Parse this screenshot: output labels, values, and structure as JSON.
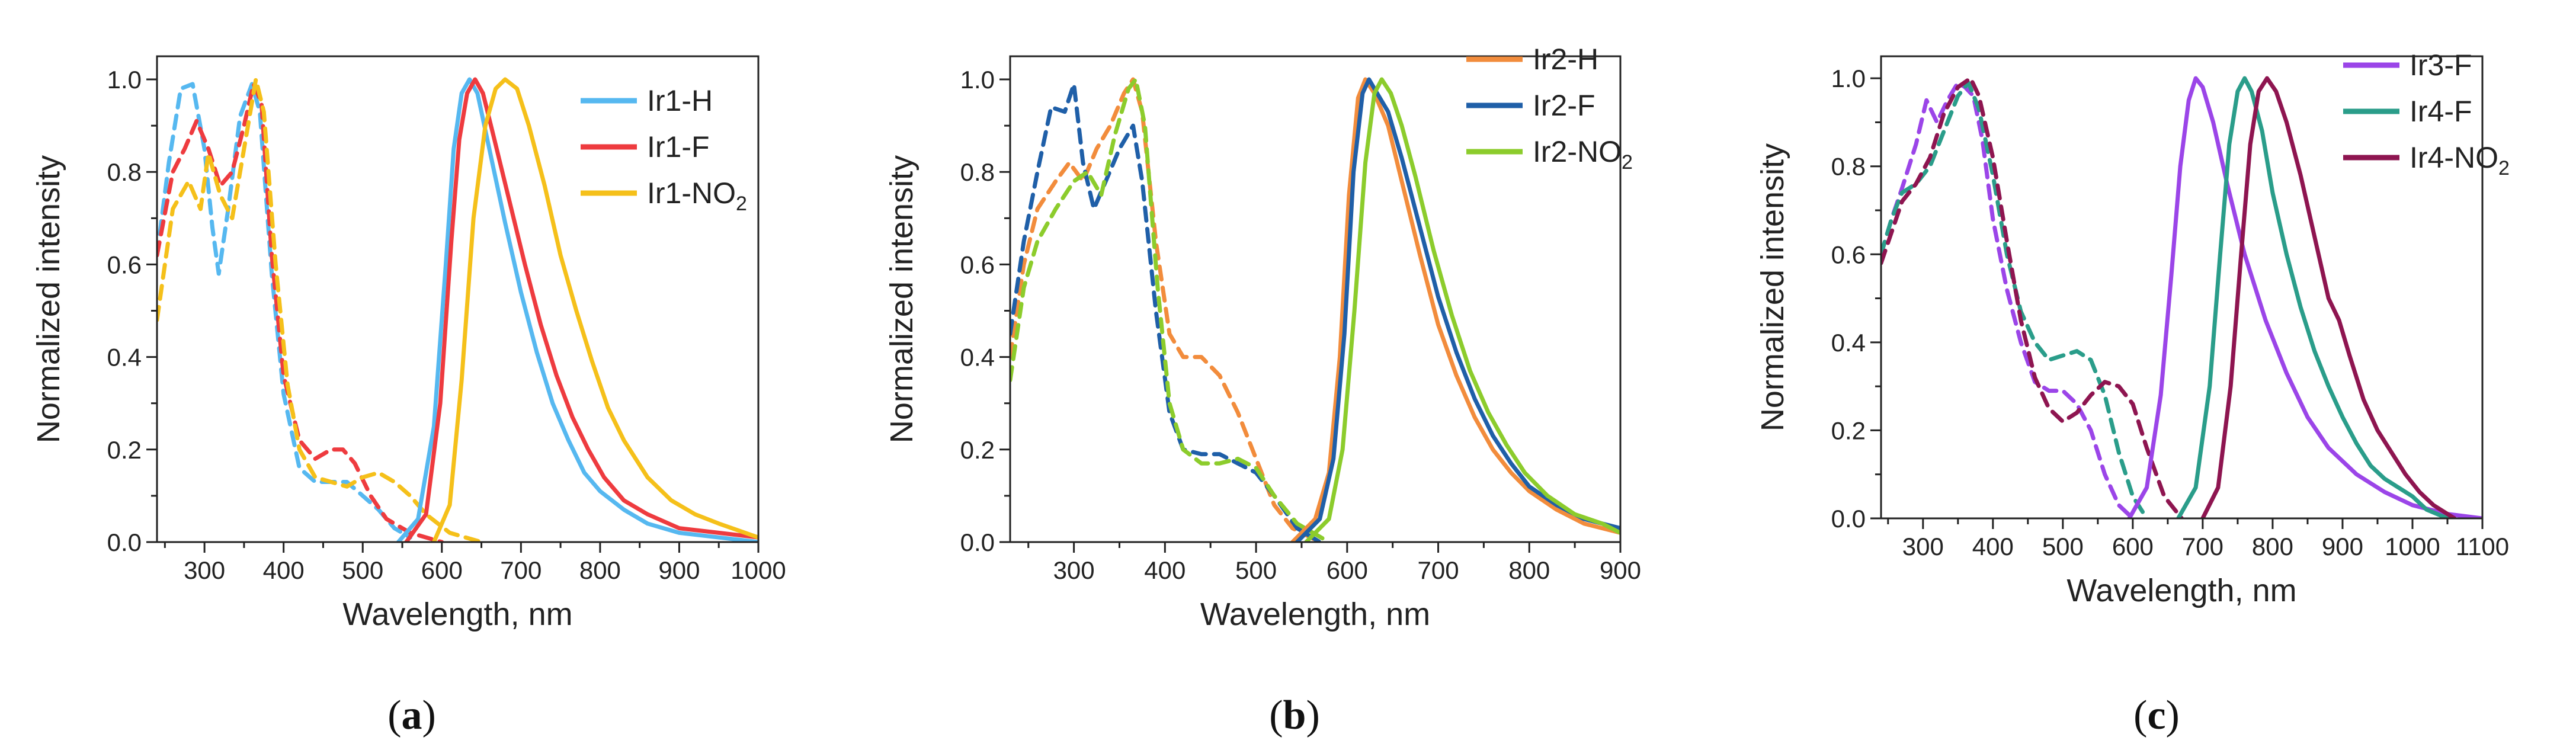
{
  "figure": {
    "description_labels": [
      "(a)",
      "(b)",
      "(c)"
    ]
  },
  "chart_data": [
    {
      "type": "line",
      "panel_label": "a",
      "xlabel": "Wavelength, nm",
      "ylabel": "Normalized intensity",
      "xlim": [
        240,
        1000
      ],
      "ylim": [
        0,
        1.05
      ],
      "xticks": [
        300,
        400,
        500,
        600,
        700,
        800,
        900,
        1000
      ],
      "yticks": [
        0.0,
        0.2,
        0.4,
        0.6,
        0.8,
        1.0
      ],
      "legend": [
        {
          "name": "Ir1-H",
          "sub": "",
          "color": "#56b8f0"
        },
        {
          "name": "Ir1-F",
          "sub": "",
          "color": "#ee3b3f"
        },
        {
          "name": "Ir1-NO",
          "sub": "2",
          "color": "#f5c01a"
        }
      ],
      "series": [
        {
          "name": "Ir1-H absorption",
          "color": "#56b8f0",
          "style": "dashed",
          "x": [
            240,
            255,
            270,
            285,
            300,
            310,
            318,
            330,
            345,
            360,
            370,
            385,
            400,
            420,
            440,
            460,
            480,
            500,
            520,
            540,
            560
          ],
          "y": [
            0.62,
            0.82,
            0.98,
            0.99,
            0.85,
            0.68,
            0.58,
            0.72,
            0.92,
            0.99,
            0.93,
            0.58,
            0.32,
            0.16,
            0.13,
            0.13,
            0.13,
            0.1,
            0.07,
            0.03,
            0.01
          ]
        },
        {
          "name": "Ir1-F absorption",
          "color": "#ee3b3f",
          "style": "dashed",
          "x": [
            240,
            260,
            275,
            290,
            305,
            320,
            335,
            350,
            362,
            372,
            385,
            400,
            420,
            440,
            460,
            475,
            490,
            510,
            530,
            560,
            600
          ],
          "y": [
            0.62,
            0.8,
            0.85,
            0.91,
            0.85,
            0.77,
            0.8,
            0.9,
            0.99,
            0.95,
            0.62,
            0.36,
            0.22,
            0.18,
            0.2,
            0.2,
            0.17,
            0.1,
            0.05,
            0.02,
            0.0
          ]
        },
        {
          "name": "Ir1-NO2 absorption",
          "color": "#f5c01a",
          "style": "dashed",
          "x": [
            240,
            260,
            280,
            295,
            305,
            320,
            335,
            350,
            365,
            375,
            390,
            405,
            420,
            440,
            460,
            480,
            500,
            520,
            540,
            560,
            580,
            610,
            650
          ],
          "y": [
            0.48,
            0.72,
            0.78,
            0.72,
            0.84,
            0.75,
            0.7,
            0.85,
            1.0,
            0.93,
            0.6,
            0.34,
            0.2,
            0.14,
            0.13,
            0.12,
            0.14,
            0.15,
            0.13,
            0.1,
            0.06,
            0.02,
            0.0
          ]
        },
        {
          "name": "Ir1-H emission",
          "color": "#56b8f0",
          "style": "solid",
          "x": [
            545,
            570,
            590,
            605,
            615,
            625,
            635,
            645,
            660,
            680,
            700,
            720,
            740,
            760,
            780,
            800,
            830,
            860,
            900,
            950,
            1000
          ],
          "y": [
            0.0,
            0.05,
            0.25,
            0.6,
            0.85,
            0.97,
            1.0,
            0.97,
            0.85,
            0.69,
            0.54,
            0.41,
            0.3,
            0.22,
            0.15,
            0.11,
            0.07,
            0.04,
            0.02,
            0.01,
            0.0
          ]
        },
        {
          "name": "Ir1-F emission",
          "color": "#ee3b3f",
          "style": "solid",
          "x": [
            555,
            580,
            598,
            612,
            622,
            632,
            642,
            652,
            665,
            685,
            705,
            725,
            745,
            765,
            785,
            805,
            830,
            860,
            900,
            950,
            1000
          ],
          "y": [
            0.0,
            0.06,
            0.3,
            0.65,
            0.87,
            0.97,
            1.0,
            0.97,
            0.88,
            0.74,
            0.6,
            0.47,
            0.36,
            0.27,
            0.2,
            0.14,
            0.09,
            0.06,
            0.03,
            0.02,
            0.01
          ]
        },
        {
          "name": "Ir1-NO2 emission",
          "color": "#f5c01a",
          "style": "solid",
          "x": [
            590,
            610,
            625,
            640,
            655,
            668,
            680,
            695,
            710,
            730,
            750,
            770,
            790,
            810,
            830,
            860,
            890,
            920,
            950,
            1000
          ],
          "y": [
            0.0,
            0.08,
            0.35,
            0.7,
            0.9,
            0.98,
            1.0,
            0.98,
            0.9,
            0.77,
            0.62,
            0.5,
            0.39,
            0.29,
            0.22,
            0.14,
            0.09,
            0.06,
            0.04,
            0.01
          ]
        }
      ]
    },
    {
      "type": "line",
      "panel_label": "b",
      "xlabel": "Wavelength, nm",
      "ylabel": "Normalized intensity",
      "xlim": [
        230,
        900
      ],
      "ylim": [
        0,
        1.05
      ],
      "xticks": [
        300,
        400,
        500,
        600,
        700,
        800,
        900
      ],
      "yticks": [
        0.0,
        0.2,
        0.4,
        0.6,
        0.8,
        1.0
      ],
      "legend": [
        {
          "name": "Ir2-H",
          "sub": "",
          "color": "#f28c3c"
        },
        {
          "name": "Ir2-F",
          "sub": "",
          "color": "#1f5fa8"
        },
        {
          "name": "Ir2-NO",
          "sub": "2",
          "color": "#8ccc2c"
        }
      ],
      "series": [
        {
          "name": "Ir2-H absorption",
          "color": "#f28c3c",
          "style": "dashed",
          "x": [
            230,
            245,
            260,
            280,
            295,
            310,
            325,
            340,
            355,
            365,
            375,
            390,
            405,
            420,
            440,
            460,
            480,
            500,
            520,
            540,
            570
          ],
          "y": [
            0.4,
            0.6,
            0.72,
            0.78,
            0.82,
            0.78,
            0.85,
            0.9,
            0.97,
            1.0,
            0.93,
            0.65,
            0.45,
            0.4,
            0.4,
            0.36,
            0.28,
            0.18,
            0.08,
            0.03,
            0.0
          ]
        },
        {
          "name": "Ir2-F absorption",
          "color": "#1f5fa8",
          "style": "dashed",
          "x": [
            230,
            245,
            260,
            275,
            290,
            300,
            310,
            322,
            335,
            350,
            365,
            375,
            390,
            405,
            420,
            440,
            460,
            480,
            500,
            520,
            545,
            570
          ],
          "y": [
            0.45,
            0.65,
            0.8,
            0.94,
            0.93,
            0.99,
            0.82,
            0.72,
            0.78,
            0.85,
            0.9,
            0.78,
            0.5,
            0.28,
            0.2,
            0.19,
            0.19,
            0.17,
            0.15,
            0.1,
            0.03,
            0.0
          ]
        },
        {
          "name": "Ir2-NO2 absorption",
          "color": "#8ccc2c",
          "style": "dashed",
          "x": [
            230,
            245,
            260,
            280,
            300,
            315,
            330,
            345,
            360,
            368,
            378,
            392,
            405,
            420,
            440,
            460,
            480,
            500,
            520,
            545,
            580
          ],
          "y": [
            0.35,
            0.55,
            0.65,
            0.72,
            0.78,
            0.8,
            0.75,
            0.88,
            0.98,
            1.0,
            0.9,
            0.55,
            0.3,
            0.2,
            0.17,
            0.17,
            0.18,
            0.16,
            0.1,
            0.04,
            0.0
          ]
        },
        {
          "name": "Ir2-H emission",
          "color": "#f28c3c",
          "style": "solid",
          "x": [
            540,
            565,
            580,
            592,
            602,
            612,
            620,
            630,
            645,
            660,
            680,
            700,
            720,
            740,
            760,
            780,
            800,
            830,
            860,
            900
          ],
          "y": [
            0.0,
            0.05,
            0.15,
            0.4,
            0.75,
            0.96,
            1.0,
            0.97,
            0.9,
            0.78,
            0.62,
            0.47,
            0.36,
            0.27,
            0.2,
            0.15,
            0.11,
            0.07,
            0.04,
            0.02
          ]
        },
        {
          "name": "Ir2-F emission",
          "color": "#1f5fa8",
          "style": "solid",
          "x": [
            545,
            570,
            585,
            597,
            607,
            617,
            624,
            633,
            645,
            660,
            680,
            700,
            720,
            740,
            760,
            780,
            800,
            830,
            860,
            900
          ],
          "y": [
            0.0,
            0.05,
            0.18,
            0.45,
            0.8,
            0.97,
            1.0,
            0.97,
            0.93,
            0.83,
            0.68,
            0.53,
            0.41,
            0.31,
            0.23,
            0.17,
            0.12,
            0.08,
            0.05,
            0.03
          ]
        },
        {
          "name": "Ir2-NO2 emission",
          "color": "#8ccc2c",
          "style": "solid",
          "x": [
            555,
            580,
            595,
            608,
            620,
            630,
            638,
            648,
            660,
            675,
            695,
            715,
            735,
            755,
            775,
            795,
            820,
            850,
            880,
            900
          ],
          "y": [
            0.0,
            0.05,
            0.2,
            0.5,
            0.82,
            0.97,
            1.0,
            0.97,
            0.9,
            0.79,
            0.63,
            0.49,
            0.37,
            0.28,
            0.21,
            0.15,
            0.1,
            0.06,
            0.04,
            0.02
          ]
        }
      ]
    },
    {
      "type": "line",
      "panel_label": "c",
      "xlabel": "Wavelength, nm",
      "ylabel": "Normalized intensity",
      "xlim": [
        240,
        1100
      ],
      "ylim": [
        0,
        1.05
      ],
      "xticks": [
        300,
        400,
        500,
        600,
        700,
        800,
        900,
        1000,
        1100
      ],
      "yticks": [
        0.0,
        0.2,
        0.4,
        0.6,
        0.8,
        1.0
      ],
      "legend": [
        {
          "name": "Ir3-F",
          "sub": "",
          "color": "#9b45e8"
        },
        {
          "name": "Ir4-F",
          "sub": "",
          "color": "#2a9d8a"
        },
        {
          "name": "Ir4-NO",
          "sub": "2",
          "color": "#8e1550"
        }
      ],
      "series": [
        {
          "name": "Ir3-F absorption",
          "color": "#9b45e8",
          "style": "dashed",
          "x": [
            240,
            255,
            270,
            290,
            305,
            320,
            335,
            350,
            360,
            372,
            385,
            400,
            420,
            440,
            460,
            480,
            500,
            520,
            540,
            560,
            580,
            600
          ],
          "y": [
            0.6,
            0.68,
            0.75,
            0.85,
            0.95,
            0.9,
            0.95,
            0.99,
            0.98,
            0.96,
            0.86,
            0.68,
            0.52,
            0.4,
            0.31,
            0.29,
            0.29,
            0.26,
            0.2,
            0.1,
            0.03,
            0.0
          ]
        },
        {
          "name": "Ir4-F absorption",
          "color": "#2a9d8a",
          "style": "dashed",
          "x": [
            240,
            255,
            270,
            290,
            310,
            330,
            350,
            365,
            380,
            400,
            420,
            440,
            460,
            480,
            500,
            520,
            540,
            560,
            580,
            600,
            620
          ],
          "y": [
            0.6,
            0.68,
            0.74,
            0.76,
            0.8,
            0.88,
            0.96,
            0.99,
            0.93,
            0.78,
            0.6,
            0.47,
            0.4,
            0.36,
            0.37,
            0.38,
            0.36,
            0.28,
            0.15,
            0.05,
            0.0
          ]
        },
        {
          "name": "Ir4-NO2 absorption",
          "color": "#8e1550",
          "style": "dashed",
          "x": [
            240,
            255,
            270,
            290,
            310,
            330,
            350,
            368,
            380,
            400,
            420,
            440,
            460,
            480,
            500,
            520,
            540,
            560,
            580,
            600,
            620,
            645,
            670
          ],
          "y": [
            0.58,
            0.65,
            0.72,
            0.76,
            0.82,
            0.92,
            0.98,
            1.0,
            0.96,
            0.82,
            0.63,
            0.45,
            0.32,
            0.25,
            0.22,
            0.24,
            0.28,
            0.31,
            0.3,
            0.26,
            0.16,
            0.05,
            0.0
          ]
        },
        {
          "name": "Ir3-F emission",
          "color": "#9b45e8",
          "style": "solid",
          "x": [
            595,
            620,
            640,
            655,
            668,
            680,
            690,
            700,
            715,
            735,
            760,
            790,
            820,
            850,
            880,
            920,
            960,
            1000,
            1050,
            1100
          ],
          "y": [
            0.0,
            0.07,
            0.28,
            0.55,
            0.8,
            0.95,
            1.0,
            0.98,
            0.9,
            0.76,
            0.6,
            0.45,
            0.33,
            0.23,
            0.16,
            0.1,
            0.06,
            0.03,
            0.01,
            0.0
          ]
        },
        {
          "name": "Ir4-F emission",
          "color": "#2a9d8a",
          "style": "solid",
          "x": [
            665,
            690,
            710,
            725,
            738,
            750,
            760,
            770,
            785,
            800,
            820,
            840,
            860,
            880,
            900,
            920,
            940,
            960,
            980,
            1000,
            1020,
            1050
          ],
          "y": [
            0.0,
            0.07,
            0.3,
            0.6,
            0.85,
            0.97,
            1.0,
            0.97,
            0.88,
            0.74,
            0.6,
            0.48,
            0.38,
            0.3,
            0.23,
            0.17,
            0.12,
            0.09,
            0.07,
            0.05,
            0.02,
            0.0
          ]
        },
        {
          "name": "Ir4-NO2 emission",
          "color": "#8e1550",
          "style": "solid",
          "x": [
            700,
            722,
            740,
            755,
            768,
            780,
            792,
            805,
            820,
            840,
            860,
            880,
            895,
            910,
            930,
            950,
            970,
            990,
            1010,
            1030,
            1060
          ],
          "y": [
            0.0,
            0.07,
            0.3,
            0.6,
            0.85,
            0.97,
            1.0,
            0.97,
            0.9,
            0.78,
            0.64,
            0.5,
            0.45,
            0.37,
            0.27,
            0.2,
            0.15,
            0.1,
            0.06,
            0.03,
            0.0
          ]
        }
      ]
    }
  ]
}
